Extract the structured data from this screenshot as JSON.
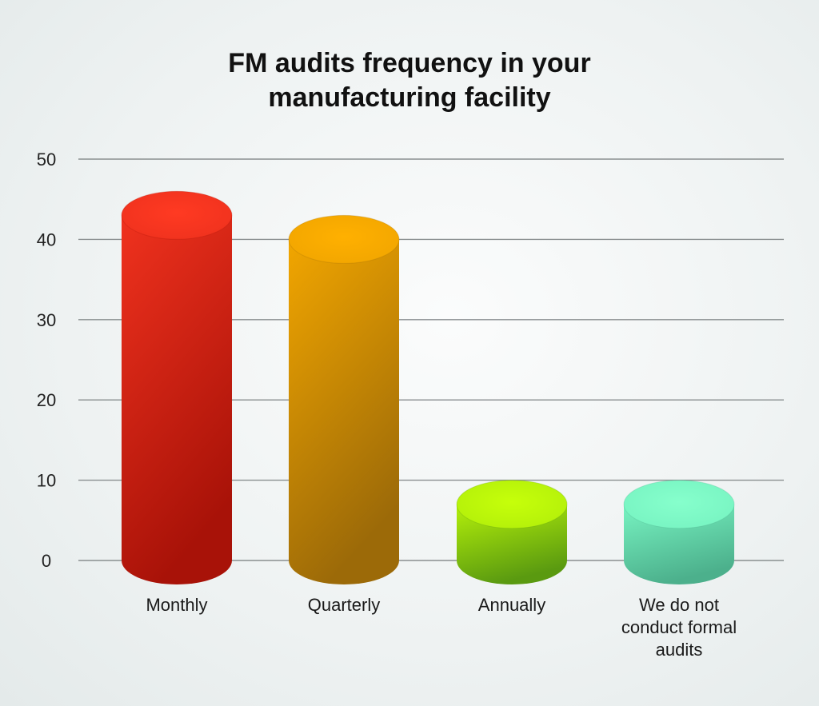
{
  "chart_data": {
    "type": "bar",
    "title_lines": [
      "FM audits frequency in your",
      "manufacturing facility"
    ],
    "categories": [
      [
        "Monthly"
      ],
      [
        "Quarterly"
      ],
      [
        "Annually"
      ],
      [
        "We do not",
        "conduct formal",
        "audits"
      ]
    ],
    "values": [
      43,
      40,
      7,
      7
    ],
    "ylim": [
      0,
      50
    ],
    "yticks": [
      0,
      10,
      20,
      30,
      40,
      50
    ],
    "grid": true,
    "legend": "none",
    "colors": [
      {
        "top": "#ff3a22",
        "light": "#f0321e",
        "dark": "#a81208"
      },
      {
        "top": "#ffb000",
        "light": "#f2a600",
        "dark": "#9c6a08"
      },
      {
        "top": "#c6ff0a",
        "light": "#b4f00a",
        "dark": "#5a9a10"
      },
      {
        "top": "#86ffcc",
        "light": "#78f4c2",
        "dark": "#4cb08c"
      }
    ]
  }
}
